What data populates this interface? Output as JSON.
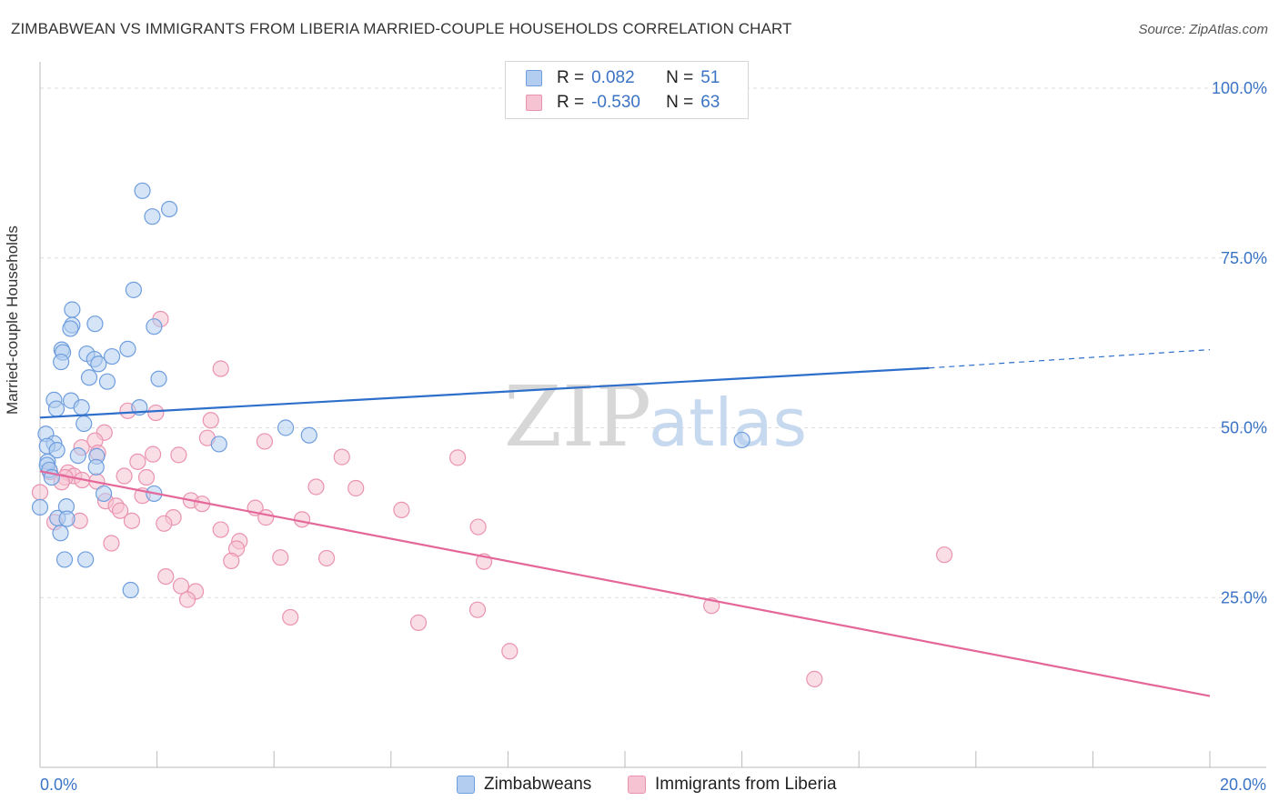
{
  "title": "ZIMBABWEAN VS IMMIGRANTS FROM LIBERIA MARRIED-COUPLE HOUSEHOLDS CORRELATION CHART",
  "source": "Source: ZipAtlas.com",
  "watermark": {
    "zip": "ZIP",
    "atlas": "atlas"
  },
  "colors": {
    "blue_fill": "#b3cdf0",
    "blue_stroke": "#6f9ede",
    "blue_line": "#2e6fcc",
    "pink_fill": "#f6c3d2",
    "pink_stroke": "#ea93b0",
    "pink_line": "#e4679a",
    "axis_text": "#3b73c5",
    "grid": "#dddddd"
  },
  "stats": [
    {
      "r_label": "R =",
      "r_value": "0.082",
      "n_label": "N =",
      "n_value": "51"
    },
    {
      "r_label": "R =",
      "r_value": "-0.530",
      "n_label": "N =",
      "n_value": "63"
    }
  ],
  "legend": [
    "Zimbabweans",
    "Immigrants from Liberia"
  ],
  "chart_data": {
    "type": "scatter",
    "title": "ZIMBABWEAN VS IMMIGRANTS FROM LIBERIA MARRIED-COUPLE HOUSEHOLDS CORRELATION CHART",
    "xlabel": "",
    "ylabel": "Married-couple Households",
    "xlim": [
      0,
      20
    ],
    "ylim": [
      0,
      100
    ],
    "x_tick_labels": [
      "0.0%",
      "20.0%"
    ],
    "y_ticks": [
      25,
      50,
      75,
      100
    ],
    "y_tick_labels": [
      "25.0%",
      "50.0%",
      "75.0%",
      "100.0%"
    ],
    "grid": true,
    "series": [
      {
        "name": "Zimbabweans",
        "r": 0.082,
        "n": 51,
        "trend": {
          "x0": 0,
          "y0": 51.5,
          "x1": 15.2,
          "y1": 58.8,
          "dashed_to_x": 20,
          "dashed_to_y": 61.5
        },
        "points": [
          [
            1.75,
            84.9
          ],
          [
            1.92,
            81.1
          ],
          [
            2.21,
            82.2
          ],
          [
            1.6,
            70.3
          ],
          [
            0.55,
            67.4
          ],
          [
            0.94,
            65.3
          ],
          [
            0.55,
            65.1
          ],
          [
            0.52,
            64.6
          ],
          [
            1.95,
            64.9
          ],
          [
            0.37,
            61.5
          ],
          [
            0.39,
            61.1
          ],
          [
            0.8,
            60.9
          ],
          [
            1.23,
            60.5
          ],
          [
            0.93,
            60.1
          ],
          [
            1.0,
            59.4
          ],
          [
            0.36,
            59.7
          ],
          [
            1.5,
            61.6
          ],
          [
            0.84,
            57.4
          ],
          [
            1.15,
            56.8
          ],
          [
            2.03,
            57.2
          ],
          [
            0.24,
            54.1
          ],
          [
            0.53,
            54.0
          ],
          [
            0.71,
            53.0
          ],
          [
            0.28,
            52.8
          ],
          [
            1.7,
            53.0
          ],
          [
            0.75,
            50.6
          ],
          [
            0.1,
            49.1
          ],
          [
            4.2,
            50.0
          ],
          [
            4.6,
            48.9
          ],
          [
            12.0,
            48.2
          ],
          [
            0.24,
            47.7
          ],
          [
            0.12,
            47.3
          ],
          [
            3.06,
            47.6
          ],
          [
            0.29,
            46.7
          ],
          [
            0.65,
            45.9
          ],
          [
            0.97,
            45.8
          ],
          [
            0.13,
            45.0
          ],
          [
            0.12,
            44.5
          ],
          [
            0.96,
            44.2
          ],
          [
            0.16,
            43.8
          ],
          [
            0.2,
            42.7
          ],
          [
            1.95,
            40.3
          ],
          [
            1.09,
            40.3
          ],
          [
            0.0,
            38.3
          ],
          [
            0.45,
            38.4
          ],
          [
            0.3,
            36.7
          ],
          [
            0.46,
            36.6
          ],
          [
            0.35,
            34.5
          ],
          [
            0.42,
            30.6
          ],
          [
            0.78,
            30.6
          ],
          [
            1.55,
            26.1
          ]
        ]
      },
      {
        "name": "Immigrants from Liberia",
        "r": -0.53,
        "n": 63,
        "trend": {
          "x0": 0,
          "y0": 43.6,
          "x1": 20,
          "y1": 10.5
        },
        "points": [
          [
            2.06,
            66.0
          ],
          [
            3.09,
            58.7
          ],
          [
            1.5,
            52.5
          ],
          [
            1.98,
            52.2
          ],
          [
            2.92,
            51.1
          ],
          [
            1.1,
            49.3
          ],
          [
            2.86,
            48.5
          ],
          [
            0.94,
            48.1
          ],
          [
            3.84,
            48.0
          ],
          [
            0.71,
            47.1
          ],
          [
            0.99,
            46.3
          ],
          [
            1.93,
            46.1
          ],
          [
            2.37,
            46.0
          ],
          [
            5.16,
            45.7
          ],
          [
            7.14,
            45.6
          ],
          [
            1.67,
            45.0
          ],
          [
            0.17,
            43.5
          ],
          [
            0.48,
            43.4
          ],
          [
            0.58,
            42.9
          ],
          [
            0.43,
            42.7
          ],
          [
            1.44,
            42.9
          ],
          [
            1.82,
            42.7
          ],
          [
            0.72,
            42.3
          ],
          [
            0.97,
            42.1
          ],
          [
            0.37,
            42.0
          ],
          [
            4.72,
            41.3
          ],
          [
            5.4,
            41.1
          ],
          [
            1.75,
            40.0
          ],
          [
            2.58,
            39.3
          ],
          [
            0.0,
            40.5
          ],
          [
            1.12,
            39.2
          ],
          [
            1.3,
            38.5
          ],
          [
            2.77,
            38.8
          ],
          [
            3.68,
            38.2
          ],
          [
            6.18,
            37.9
          ],
          [
            1.37,
            37.8
          ],
          [
            2.28,
            36.8
          ],
          [
            1.57,
            36.3
          ],
          [
            4.48,
            36.5
          ],
          [
            3.86,
            36.8
          ],
          [
            2.12,
            35.9
          ],
          [
            3.09,
            35.0
          ],
          [
            7.49,
            35.4
          ],
          [
            3.41,
            33.3
          ],
          [
            1.22,
            33.0
          ],
          [
            3.36,
            32.2
          ],
          [
            4.11,
            30.9
          ],
          [
            4.9,
            30.8
          ],
          [
            3.27,
            30.4
          ],
          [
            7.59,
            30.3
          ],
          [
            15.46,
            31.3
          ],
          [
            2.15,
            28.1
          ],
          [
            2.41,
            26.7
          ],
          [
            2.66,
            25.9
          ],
          [
            2.52,
            24.7
          ],
          [
            11.48,
            23.8
          ],
          [
            7.48,
            23.2
          ],
          [
            4.28,
            22.1
          ],
          [
            6.47,
            21.3
          ],
          [
            8.03,
            17.1
          ],
          [
            13.24,
            13.0
          ],
          [
            0.68,
            36.3
          ],
          [
            0.25,
            36.1
          ]
        ]
      }
    ]
  }
}
